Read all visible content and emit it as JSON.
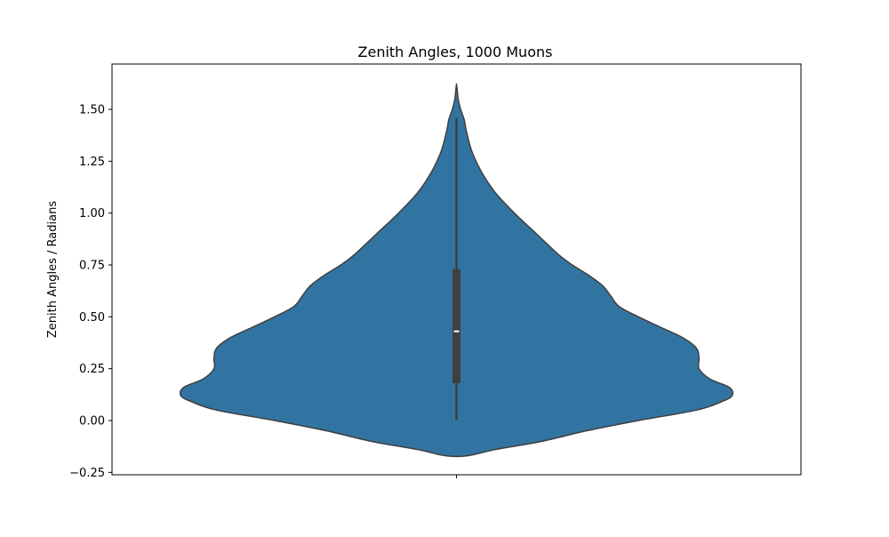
{
  "chart_data": {
    "type": "violin",
    "title": "Zenith Angles, 1000 Muons",
    "xlabel": "",
    "ylabel": "Zenith Angles / Radians",
    "ylim": [
      -0.25,
      1.7
    ],
    "yticks": [
      -0.25,
      0.0,
      0.25,
      0.5,
      0.75,
      1.0,
      1.25,
      1.5
    ],
    "ytick_labels": [
      "−0.25",
      "0.00",
      "0.25",
      "0.50",
      "0.75",
      "1.00",
      "1.25",
      "1.50"
    ],
    "x_categories": [
      ""
    ],
    "grid": false,
    "legend": "none",
    "fill_color": "#3274a1",
    "edge_color": "#3f3f3f",
    "series": [
      {
        "count": 1000,
        "density": [
          {
            "y": -0.17,
            "w": 0.04
          },
          {
            "y": -0.14,
            "w": 0.14
          },
          {
            "y": -0.1,
            "w": 0.31
          },
          {
            "y": -0.05,
            "w": 0.47
          },
          {
            "y": 0.0,
            "w": 0.66
          },
          {
            "y": 0.05,
            "w": 0.87
          },
          {
            "y": 0.09,
            "w": 0.96
          },
          {
            "y": 0.12,
            "w": 1.0
          },
          {
            "y": 0.16,
            "w": 0.99
          },
          {
            "y": 0.2,
            "w": 0.92
          },
          {
            "y": 0.25,
            "w": 0.88
          },
          {
            "y": 0.3,
            "w": 0.88
          },
          {
            "y": 0.35,
            "w": 0.87
          },
          {
            "y": 0.4,
            "w": 0.82
          },
          {
            "y": 0.45,
            "w": 0.74
          },
          {
            "y": 0.5,
            "w": 0.66
          },
          {
            "y": 0.55,
            "w": 0.59
          },
          {
            "y": 0.6,
            "w": 0.56
          },
          {
            "y": 0.65,
            "w": 0.53
          },
          {
            "y": 0.7,
            "w": 0.48
          },
          {
            "y": 0.75,
            "w": 0.42
          },
          {
            "y": 0.8,
            "w": 0.37
          },
          {
            "y": 0.9,
            "w": 0.29
          },
          {
            "y": 1.0,
            "w": 0.21
          },
          {
            "y": 1.1,
            "w": 0.14
          },
          {
            "y": 1.2,
            "w": 0.09
          },
          {
            "y": 1.3,
            "w": 0.055
          },
          {
            "y": 1.4,
            "w": 0.035
          },
          {
            "y": 1.45,
            "w": 0.028
          },
          {
            "y": 1.5,
            "w": 0.015
          },
          {
            "y": 1.55,
            "w": 0.006
          },
          {
            "y": 1.6,
            "w": 0.002
          },
          {
            "y": 1.62,
            "w": 0.0
          }
        ],
        "box": {
          "whisker_low": 0.0,
          "q1": 0.18,
          "median": 0.43,
          "q3": 0.73,
          "whisker_high": 1.46
        }
      }
    ]
  }
}
